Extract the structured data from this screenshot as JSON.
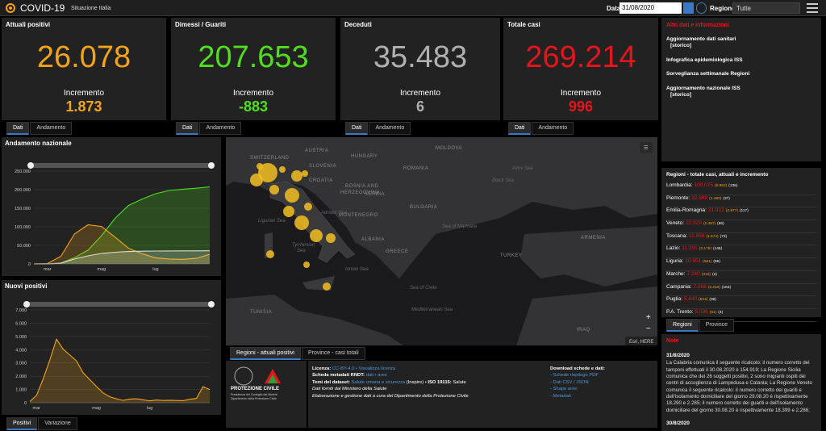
{
  "header": {
    "title": "COVID-19",
    "subtitle": "Situazione Italia",
    "date_label": "Data",
    "date_value": "31/08/2020",
    "region_label": "Regione",
    "region_value": "Tutte"
  },
  "kpis": [
    {
      "title": "Attuali positivi",
      "value": "26.078",
      "increment_label": "Incremento",
      "increment": "1.873",
      "color": "#f5a31a"
    },
    {
      "title": "Dimessi / Guariti",
      "value": "207.653",
      "increment_label": "Incremento",
      "increment": "-883",
      "color": "#4fdf1f"
    },
    {
      "title": "Deceduti",
      "value": "35.483",
      "increment_label": "Incremento",
      "increment": "6",
      "color": "#b0b0b0"
    },
    {
      "title": "Totale casi",
      "value": "269.214",
      "increment_label": "Incremento",
      "increment": "996",
      "color": "#e8141c"
    }
  ],
  "kpi_tabs": [
    "Dati",
    "Andamento"
  ],
  "info": {
    "title": "Altri dati e informazioni",
    "links": [
      [
        "Aggiornamento dati sanitari",
        "[storico]"
      ],
      [
        "Infografica epidemiologica ISS"
      ],
      [
        "Sorveglianza settimanale Regioni"
      ],
      [
        "Aggiornamento nazionale ISS",
        "[storico]"
      ]
    ]
  },
  "trend_chart": {
    "type": "line",
    "title": "Andamento nazionale",
    "categories": [
      null,
      "mar",
      null,
      null,
      null,
      "mag",
      null,
      null,
      null,
      "lug",
      null,
      null,
      null,
      null
    ],
    "series": [
      {
        "color": "#4fdf1f",
        "values": [
          1,
          83,
          2335,
          16847,
          37130,
          75945,
          122810,
          157507,
          174865,
          189196,
          197842,
          201323,
          203968,
          207653
        ]
      },
      {
        "color": "#f5a31a",
        "values": [
          200,
          1049,
          20603,
          80572,
          105418,
          100943,
          72070,
          42075,
          27485,
          16496,
          13179,
          12457,
          15089,
          26078
        ]
      },
      {
        "color": "#dddddd",
        "values": [
          7,
          34,
          1809,
          13155,
          21645,
          28236,
          31610,
          33475,
          34371,
          34788,
          35017,
          35146,
          35234,
          35483
        ]
      }
    ],
    "ylim": [
      0,
      250000
    ],
    "yticks": [
      0,
      {
        "value": 50000,
        "label": "50.000"
      },
      {
        "value": 100000,
        "label": "100.000"
      },
      {
        "value": 150000,
        "label": "150.000"
      },
      {
        "value": 200000,
        "label": "200.000"
      },
      {
        "value": 250000,
        "label": "250.000"
      }
    ],
    "grid": true
  },
  "new_chart": {
    "type": "line",
    "title": "Nuovi positivi",
    "categories": [
      null,
      "mar",
      null,
      null,
      null,
      null,
      null,
      null,
      null,
      null,
      "mag",
      null,
      null,
      null,
      null,
      null,
      null,
      null,
      "lug",
      null,
      null,
      null,
      null,
      null,
      null,
      null,
      null,
      null
    ],
    "series": [
      {
        "color": "#f5a31a",
        "values": [
          93,
          561,
          1797,
          3233,
          4789,
          4050,
          3599,
          3153,
          2256,
          1739,
          1221,
          744,
          451,
          300,
          178,
          280,
          301,
          224,
          142,
          208,
          169,
          190,
          170,
          159,
          259,
          320,
          1210,
          996
        ]
      }
    ],
    "ylim": [
      0,
      7000
    ],
    "yticks": [
      0,
      {
        "value": 1000,
        "label": "1.000"
      },
      {
        "value": 2000,
        "label": "2.000"
      },
      {
        "value": 3000,
        "label": "3.000"
      },
      {
        "value": 4000,
        "label": "4.000"
      },
      {
        "value": 5000,
        "label": "5.000"
      },
      {
        "value": 6000,
        "label": "6.000"
      },
      {
        "value": 7000,
        "label": "7.000"
      }
    ],
    "grid": true
  },
  "chart_tabs": [
    "Positivi",
    "Variazione"
  ],
  "map": {
    "labels": [
      "SWITZERLAND",
      "AUSTRIA",
      "HUNGARY",
      "MOLDOVA",
      "SLOVENIA",
      "CROATIA",
      "ROMANIA",
      "SERBIA",
      "BOSNIA AND",
      "HERZEGOVINA",
      "BULGARIA",
      "MONTENEGRO",
      "ALBANIA",
      "GREECE",
      "TURKEY",
      "TUNISIA",
      "ARMENIA",
      "IRAQ",
      "Black Sea",
      "Azov Sea",
      "Ligurian Sea",
      "Tyrrhenian",
      "Sea",
      "Adriatic Sea",
      "Ionian Sea",
      "Sea of Crete",
      "Mediterranean Sea",
      "Sea of Marmara"
    ],
    "attribution": "Esri, HERE",
    "tabs": [
      "Regioni - attuali positivi",
      "Province - casi totali"
    ]
  },
  "regions": {
    "title": "Regioni - totale casi, attuali e incremento",
    "rows": [
      [
        "Lombardia:",
        "100.075",
        "(6.952)",
        "(135)"
      ],
      [
        "Piemonte:",
        "32.889",
        "(1.450)",
        "(37)"
      ],
      [
        "Emilia-Romagna:",
        "31.922",
        "(2.977)",
        "(117)"
      ],
      [
        "Veneto:",
        "22.929",
        "(2.387)",
        "(65)"
      ],
      [
        "Toscana:",
        "11.858",
        "(1.574)",
        "(73)"
      ],
      [
        "Lazio:",
        "11.191",
        "(3.178)",
        "(148)"
      ],
      [
        "Liguria:",
        "10.951",
        "(561)",
        "(66)"
      ],
      [
        "Marche:",
        "7.240",
        "(318)",
        "(2)"
      ],
      [
        "Campania:",
        "7.066",
        "(2.210)",
        "(184)"
      ],
      [
        "Puglia:",
        "5.440",
        "(844)",
        "(38)"
      ],
      [
        "P.A. Trento:",
        "5.096",
        "(91)",
        "(4)"
      ]
    ],
    "tabs": [
      "Regioni",
      "Province"
    ]
  },
  "notes": {
    "title": "Note",
    "entries": [
      {
        "date": "31/8/2020",
        "text": "La Calabria comunica il seguente ricalcolo: il numero corretto dei tamponi effettuati il 30.08.2020 è 154.919; La Regione Sicilia comunica che dei 26 soggetti positivi, 2 sono migranti ospiti dei centri di accoglienza di Lampedusa e Catania; La Regione Veneto comunica il seguente ricalcolo: il numero corretto dei guariti e dell'isolamento domiciliare del giorno 29.08.20 è rispettivamente 18.290 e 2.285; il numero corretto dei guariti e dell'isolamento domiciliare del giorno 30.08.20 è rispettivamente 18.399 e 2.286;"
      },
      {
        "date": "30/8/2020",
        "text": ""
      }
    ]
  },
  "footer": {
    "logo_title": "PROTEZIONE CIVILE",
    "logo_sub": [
      "Presidenza del Consiglio dei Ministri",
      "Dipartimento della Protezione Civile"
    ],
    "lines": [
      [
        {
          "text": "Licenza: ",
          "bold": true
        },
        {
          "text": "CC-BY-4.0 • Visualizza licenza",
          "link": true
        }
      ],
      [
        {
          "text": "Scheda metadati RNDT: ",
          "bold": true
        },
        {
          "text": "dati • aree",
          "link": true
        }
      ],
      [
        {
          "text": "Temi del dataset: ",
          "bold": true
        },
        {
          "text": "Salute umana e sicurezza",
          "link": true
        },
        {
          "text": " (Inspire) • "
        },
        {
          "text": "ISO 19115: ",
          "bold": true
        },
        {
          "text": "Salute"
        }
      ],
      [
        {
          "text": "Dati forniti dal Ministero della Salute",
          "italic": true
        }
      ],
      [
        {
          "text": "Elaborazione e gestione dati a cura del Dipartimento della Protezione Civile",
          "italic": true
        }
      ]
    ],
    "download_title": "Download schede e dati:",
    "downloads": [
      "- Schede riepilogo PDF",
      "- Dati CSV / JSON",
      "- Shape aree",
      "- Metadati"
    ]
  }
}
